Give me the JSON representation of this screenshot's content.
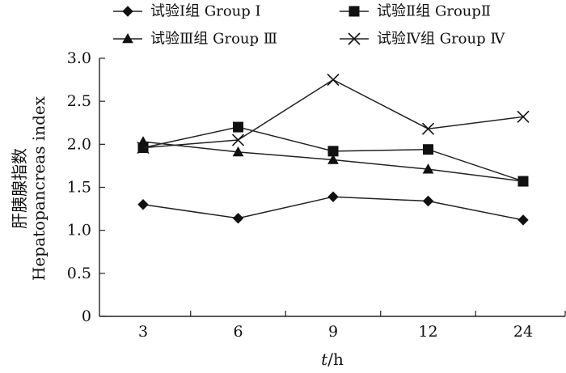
{
  "chart_data": {
    "type": "line",
    "categories": [
      "3",
      "6",
      "9",
      "12",
      "24"
    ],
    "series": [
      {
        "name": "试验Ⅰ组 Group Ⅰ",
        "marker": "diamond",
        "values": [
          1.3,
          1.14,
          1.39,
          1.34,
          1.12
        ]
      },
      {
        "name": "试验Ⅱ组 GroupⅡ",
        "marker": "square",
        "values": [
          1.96,
          2.2,
          1.92,
          1.94,
          1.57
        ]
      },
      {
        "name": "试验Ⅲ组 Group Ⅲ",
        "marker": "triangle",
        "values": [
          2.03,
          1.91,
          1.82,
          1.71,
          1.57
        ]
      },
      {
        "name": "试验Ⅳ组 Group Ⅳ",
        "marker": "x",
        "values": [
          1.96,
          2.05,
          2.75,
          2.18,
          2.32
        ]
      }
    ],
    "xlabel_italic": "t",
    "xlabel_rest": "/h",
    "ylabel_cn": "肝胰腺指数",
    "ylabel_en": "Hepatopancreas index",
    "ylim": [
      0,
      3.0
    ],
    "yticks": [
      "0",
      "0.5",
      "1.0",
      "1.5",
      "2.0",
      "2.5",
      "3.0"
    ],
    "legend_position": "top",
    "grid": false,
    "colors": {
      "line": "#222222",
      "marker": "#111111"
    }
  }
}
